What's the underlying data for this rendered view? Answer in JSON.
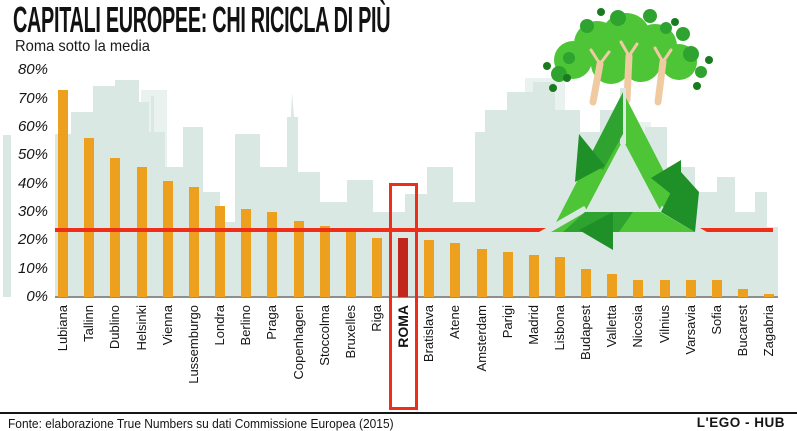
{
  "header": {
    "title": "CAPITALI EUROPEE: CHI RICICLA DI PIÙ",
    "subtitle": "Roma sotto la media"
  },
  "chart_data": {
    "type": "bar",
    "title": "CAPITALI EUROPEE: CHI RICICLA DI PIÙ",
    "subtitle": "Roma sotto la media",
    "unit": "percent",
    "categories": [
      "Lubiana",
      "Tallinn",
      "Dublino",
      "Helsinki",
      "Vienna",
      "Lussemburgo",
      "Londra",
      "Berlino",
      "Praga",
      "Copenhagen",
      "Stoccolma",
      "Bruxelles",
      "Riga",
      "ROMA",
      "Bratislava",
      "Atene",
      "Amsterdam",
      "Parigi",
      "Madrid",
      "Lisbona",
      "Budapest",
      "Valletta",
      "Nicosia",
      "Vilnius",
      "Varsavia",
      "Sofia",
      "Bucarest",
      "Zagabria"
    ],
    "values": [
      73,
      56,
      49,
      46,
      41,
      39,
      32,
      31,
      30,
      27,
      25,
      23,
      21,
      21,
      20,
      19,
      17,
      16,
      15,
      14,
      10,
      8,
      6,
      6,
      6,
      6,
      3,
      1
    ],
    "ylim": [
      0,
      80
    ],
    "yticks": [
      "0%",
      "10%",
      "20%",
      "30%",
      "40%",
      "50%",
      "60%",
      "70%",
      "80%"
    ],
    "grid": false,
    "legend": false,
    "average_line_value": 23.5,
    "highlight": {
      "category": "ROMA",
      "index": 13
    },
    "colors": {
      "bar": "#EDA01E",
      "highlight_bar": "#C1271B",
      "average_line": "#EE2E18",
      "highlight_box": "#EE2E18",
      "skyline": "#D9E8E3",
      "skyline_light": "#E9F2EE",
      "axis_line": "#8F8F8F",
      "text": "#111111"
    }
  },
  "logo": {
    "name": "recycle-trees-logo",
    "green_light": "#4EC437",
    "green_mid": "#2FA32F",
    "green_dark": "#1A7A20",
    "green_deep": "#1F8F28",
    "trunk": "#F0CBA2"
  },
  "footer": {
    "source": "Fonte: elaborazione True Numbers su dati Commissione Europea (2015)",
    "brand": "L'EGO - HUB"
  }
}
